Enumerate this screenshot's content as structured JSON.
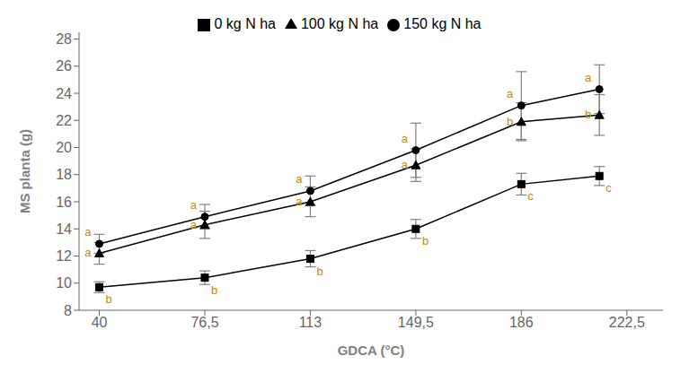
{
  "chart_data": {
    "type": "line",
    "xlabel": "GDCA (°C)",
    "ylabel": "MS planta (g)",
    "x": [
      40,
      76.5,
      113,
      149.5,
      186,
      213
    ],
    "xlim": [
      33,
      235
    ],
    "xticks": [
      40,
      {
        "value": 76.5,
        "label": "76,5"
      },
      113,
      {
        "value": 149.5,
        "label": "149,5"
      },
      186,
      {
        "value": 222.5,
        "label": "222,5"
      }
    ],
    "ylim": [
      8,
      28.5
    ],
    "yticks": [
      8,
      10,
      12,
      14,
      16,
      18,
      20,
      22,
      24,
      26,
      28
    ],
    "grid": false,
    "legend": "top",
    "series": [
      {
        "name": "0 kg N ha",
        "color": "#000000",
        "marker": "square",
        "values": [
          9.7,
          10.4,
          11.8,
          14.0,
          17.3,
          17.9
        ],
        "errors": [
          0.4,
          0.5,
          0.6,
          0.7,
          0.8,
          0.7
        ],
        "annotations": [
          "b",
          "b",
          "b",
          "b",
          "c",
          "c"
        ]
      },
      {
        "name": "100 kg N ha",
        "color": "#000000",
        "marker": "triangle",
        "values": [
          12.2,
          14.3,
          16.0,
          18.7,
          21.9,
          22.4
        ],
        "errors": [
          0.8,
          1.0,
          1.1,
          1.2,
          1.4,
          1.5
        ],
        "annotations": [
          "a",
          "a",
          "a",
          "a",
          "b",
          "b"
        ]
      },
      {
        "name": "150 kg N ha",
        "color": "#000000",
        "marker": "circle",
        "values": [
          12.9,
          14.9,
          16.8,
          19.8,
          23.1,
          24.3
        ],
        "errors": [
          0.7,
          0.9,
          1.1,
          2.0,
          2.5,
          1.8
        ],
        "annotations": [
          "a",
          "a",
          "a",
          "a",
          "a",
          "a"
        ]
      }
    ]
  }
}
